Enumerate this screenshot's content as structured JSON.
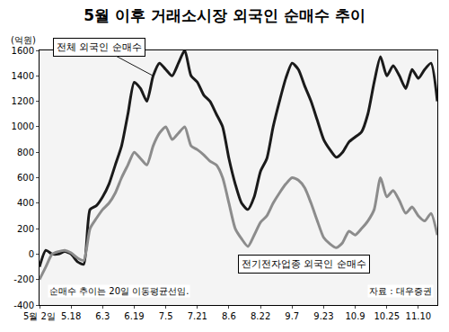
{
  "chart_data": {
    "type": "line",
    "title": "5월 이후 거래소시장 외국인 순매수 추이",
    "ylabel": "(억원)",
    "note": "순매수 추이는 20일 이동평균선임.",
    "source": "자료 : 대우증권",
    "categories": [
      "5월 2일",
      null,
      null,
      null,
      null,
      "5.18",
      null,
      null,
      null,
      null,
      "6.3",
      null,
      null,
      null,
      null,
      "6.19",
      null,
      null,
      null,
      null,
      "7.5",
      null,
      null,
      null,
      null,
      "7.21",
      null,
      null,
      null,
      null,
      "8.6",
      null,
      null,
      null,
      null,
      "8.22",
      null,
      null,
      null,
      null,
      "9.7",
      null,
      null,
      null,
      null,
      "9.23",
      null,
      null,
      null,
      null,
      "10.9",
      null,
      null,
      null,
      null,
      "10.25",
      null,
      null,
      null,
      null,
      "11.10",
      null,
      null,
      null
    ],
    "series": [
      {
        "name": "전체 외국인 순매수",
        "color": "#1a1a1a",
        "values": [
          -100,
          30,
          0,
          0,
          20,
          0,
          -60,
          -80,
          350,
          380,
          450,
          550,
          700,
          850,
          1100,
          1350,
          1300,
          1200,
          1400,
          1500,
          1450,
          1400,
          1500,
          1600,
          1400,
          1350,
          1250,
          1200,
          1100,
          1000,
          750,
          550,
          400,
          350,
          450,
          650,
          750,
          1000,
          1200,
          1380,
          1500,
          1450,
          1320,
          1200,
          1050,
          900,
          820,
          760,
          800,
          880,
          920,
          960,
          1100,
          1350,
          1550,
          1400,
          1480,
          1400,
          1300,
          1450,
          1380,
          1450,
          1500,
          1200
        ]
      },
      {
        "name": "전기전자업종 외국인 순매수",
        "color": "#8c8c8c",
        "values": [
          -200,
          -100,
          0,
          20,
          30,
          10,
          -30,
          -50,
          200,
          280,
          350,
          400,
          480,
          600,
          700,
          800,
          750,
          700,
          850,
          950,
          1000,
          900,
          950,
          1000,
          850,
          820,
          780,
          730,
          700,
          600,
          400,
          200,
          120,
          60,
          150,
          250,
          300,
          400,
          480,
          550,
          600,
          580,
          520,
          400,
          260,
          130,
          80,
          50,
          90,
          180,
          150,
          200,
          260,
          350,
          600,
          450,
          500,
          420,
          320,
          370,
          300,
          260,
          320,
          150
        ]
      }
    ],
    "ylim": [
      -400,
      1600
    ],
    "yticks": [
      -400,
      -200,
      0,
      200,
      400,
      600,
      800,
      1000,
      1200,
      1400,
      1600
    ],
    "grid": false
  }
}
